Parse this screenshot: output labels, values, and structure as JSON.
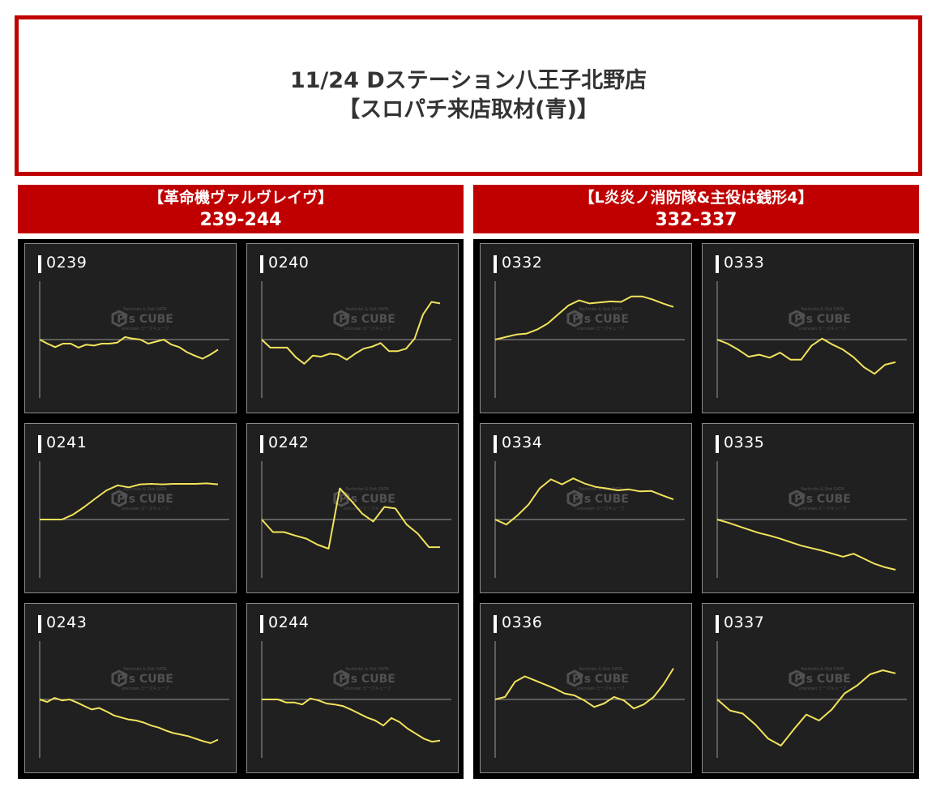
{
  "header": {
    "title_line1": "11/24 Dステーション八王子北野店",
    "title_line2": "【スロパチ来店取材(青)】"
  },
  "watermark": {
    "line1": "Pachinko & Slot DATA",
    "line2": "P's CUBE",
    "line3": "unknown ピーズキューブ"
  },
  "colors": {
    "accent_red": "#c00000",
    "line_yellow": "#f2e35c",
    "card_bg": "#202020",
    "panel_bg": "#000000"
  },
  "groups": [
    {
      "name": "【革命機ヴァルヴレイヴ】",
      "range": "239-244",
      "chart_data": [
        {
          "type": "line",
          "machine": "0239",
          "ylim": [
            -1,
            1
          ],
          "values": [
            0,
            -0.08,
            -0.15,
            -0.08,
            -0.08,
            -0.16,
            -0.1,
            -0.12,
            -0.08,
            -0.08,
            -0.06,
            0.05,
            0.02,
            0,
            -0.08,
            -0.04,
            0,
            -0.1,
            -0.15,
            -0.25,
            -0.32,
            -0.38,
            -0.3,
            -0.2
          ]
        },
        {
          "type": "line",
          "machine": "0240",
          "ylim": [
            -1,
            1
          ],
          "values": [
            0,
            -0.16,
            -0.16,
            -0.16,
            -0.35,
            -0.48,
            -0.32,
            -0.34,
            -0.28,
            -0.3,
            -0.4,
            -0.28,
            -0.18,
            -0.14,
            -0.07,
            -0.23,
            -0.23,
            -0.18,
            0.02,
            0.5,
            0.75,
            0.72
          ]
        },
        {
          "type": "line",
          "machine": "0241",
          "ylim": [
            -1,
            1
          ],
          "values": [
            0,
            0,
            0,
            0.1,
            0.25,
            0.42,
            0.58,
            0.68,
            0.64,
            0.7,
            0.71,
            0.7,
            0.71,
            0.71,
            0.71,
            0.72,
            0.7
          ]
        },
        {
          "type": "line",
          "machine": "0242",
          "ylim": [
            -1,
            1
          ],
          "values": [
            0,
            -0.25,
            -0.25,
            -0.32,
            -0.38,
            -0.5,
            -0.58,
            0.62,
            0.38,
            0.12,
            -0.04,
            0.25,
            0.22,
            -0.1,
            -0.28,
            -0.55,
            -0.55
          ]
        },
        {
          "type": "line",
          "machine": "0243",
          "ylim": [
            -1,
            1
          ],
          "values": [
            0,
            -0.05,
            0.03,
            -0.02,
            0,
            -0.06,
            -0.13,
            -0.2,
            -0.17,
            -0.24,
            -0.32,
            -0.36,
            -0.4,
            -0.42,
            -0.46,
            -0.52,
            -0.56,
            -0.62,
            -0.67,
            -0.7,
            -0.73,
            -0.78,
            -0.83,
            -0.87,
            -0.8
          ]
        },
        {
          "type": "line",
          "machine": "0244",
          "ylim": [
            -1,
            1
          ],
          "values": [
            0,
            0,
            0,
            -0.06,
            -0.06,
            -0.1,
            0.02,
            -0.02,
            -0.08,
            -0.1,
            -0.13,
            -0.2,
            -0.28,
            -0.36,
            -0.42,
            -0.52,
            -0.37,
            -0.45,
            -0.58,
            -0.68,
            -0.78,
            -0.84,
            -0.82
          ]
        }
      ]
    },
    {
      "name": "【L炎炎ノ消防隊&主役は銭形4】",
      "range": "332-337",
      "chart_data": [
        {
          "type": "line",
          "machine": "0332",
          "ylim": [
            -1,
            1
          ],
          "values": [
            0,
            0.05,
            0.1,
            0.12,
            0.2,
            0.32,
            0.5,
            0.68,
            0.78,
            0.72,
            0.74,
            0.76,
            0.75,
            0.86,
            0.86,
            0.8,
            0.72,
            0.65
          ]
        },
        {
          "type": "line",
          "machine": "0333",
          "ylim": [
            -1,
            1
          ],
          "values": [
            0,
            -0.08,
            -0.2,
            -0.34,
            -0.3,
            -0.36,
            -0.26,
            -0.4,
            -0.4,
            -0.12,
            0.02,
            -0.1,
            -0.2,
            -0.35,
            -0.55,
            -0.68,
            -0.5,
            -0.45
          ]
        },
        {
          "type": "line",
          "machine": "0334",
          "ylim": [
            -1,
            1
          ],
          "values": [
            0,
            -0.1,
            0.08,
            0.3,
            0.62,
            0.8,
            0.7,
            0.82,
            0.72,
            0.65,
            0.62,
            0.58,
            0.6,
            0.56,
            0.57,
            0.48,
            0.4
          ]
        },
        {
          "type": "line",
          "machine": "0335",
          "ylim": [
            -1,
            1
          ],
          "values": [
            0,
            -0.06,
            -0.13,
            -0.2,
            -0.27,
            -0.32,
            -0.38,
            -0.45,
            -0.52,
            -0.57,
            -0.62,
            -0.68,
            -0.74,
            -0.68,
            -0.78,
            -0.88,
            -0.95,
            -1.0
          ]
        },
        {
          "type": "line",
          "machine": "0336",
          "ylim": [
            -1,
            1
          ],
          "values": [
            0,
            0.05,
            0.35,
            0.46,
            0.38,
            0.3,
            0.22,
            0.12,
            0.08,
            -0.02,
            -0.15,
            -0.08,
            0.05,
            -0.02,
            -0.18,
            -0.1,
            0.05,
            0.3,
            0.62
          ]
        },
        {
          "type": "line",
          "machine": "0337",
          "ylim": [
            -1,
            1
          ],
          "values": [
            0,
            -0.22,
            -0.28,
            -0.5,
            -0.78,
            -0.92,
            -0.6,
            -0.3,
            -0.42,
            -0.2,
            0.12,
            0.28,
            0.5,
            0.58,
            0.52
          ]
        }
      ]
    }
  ]
}
